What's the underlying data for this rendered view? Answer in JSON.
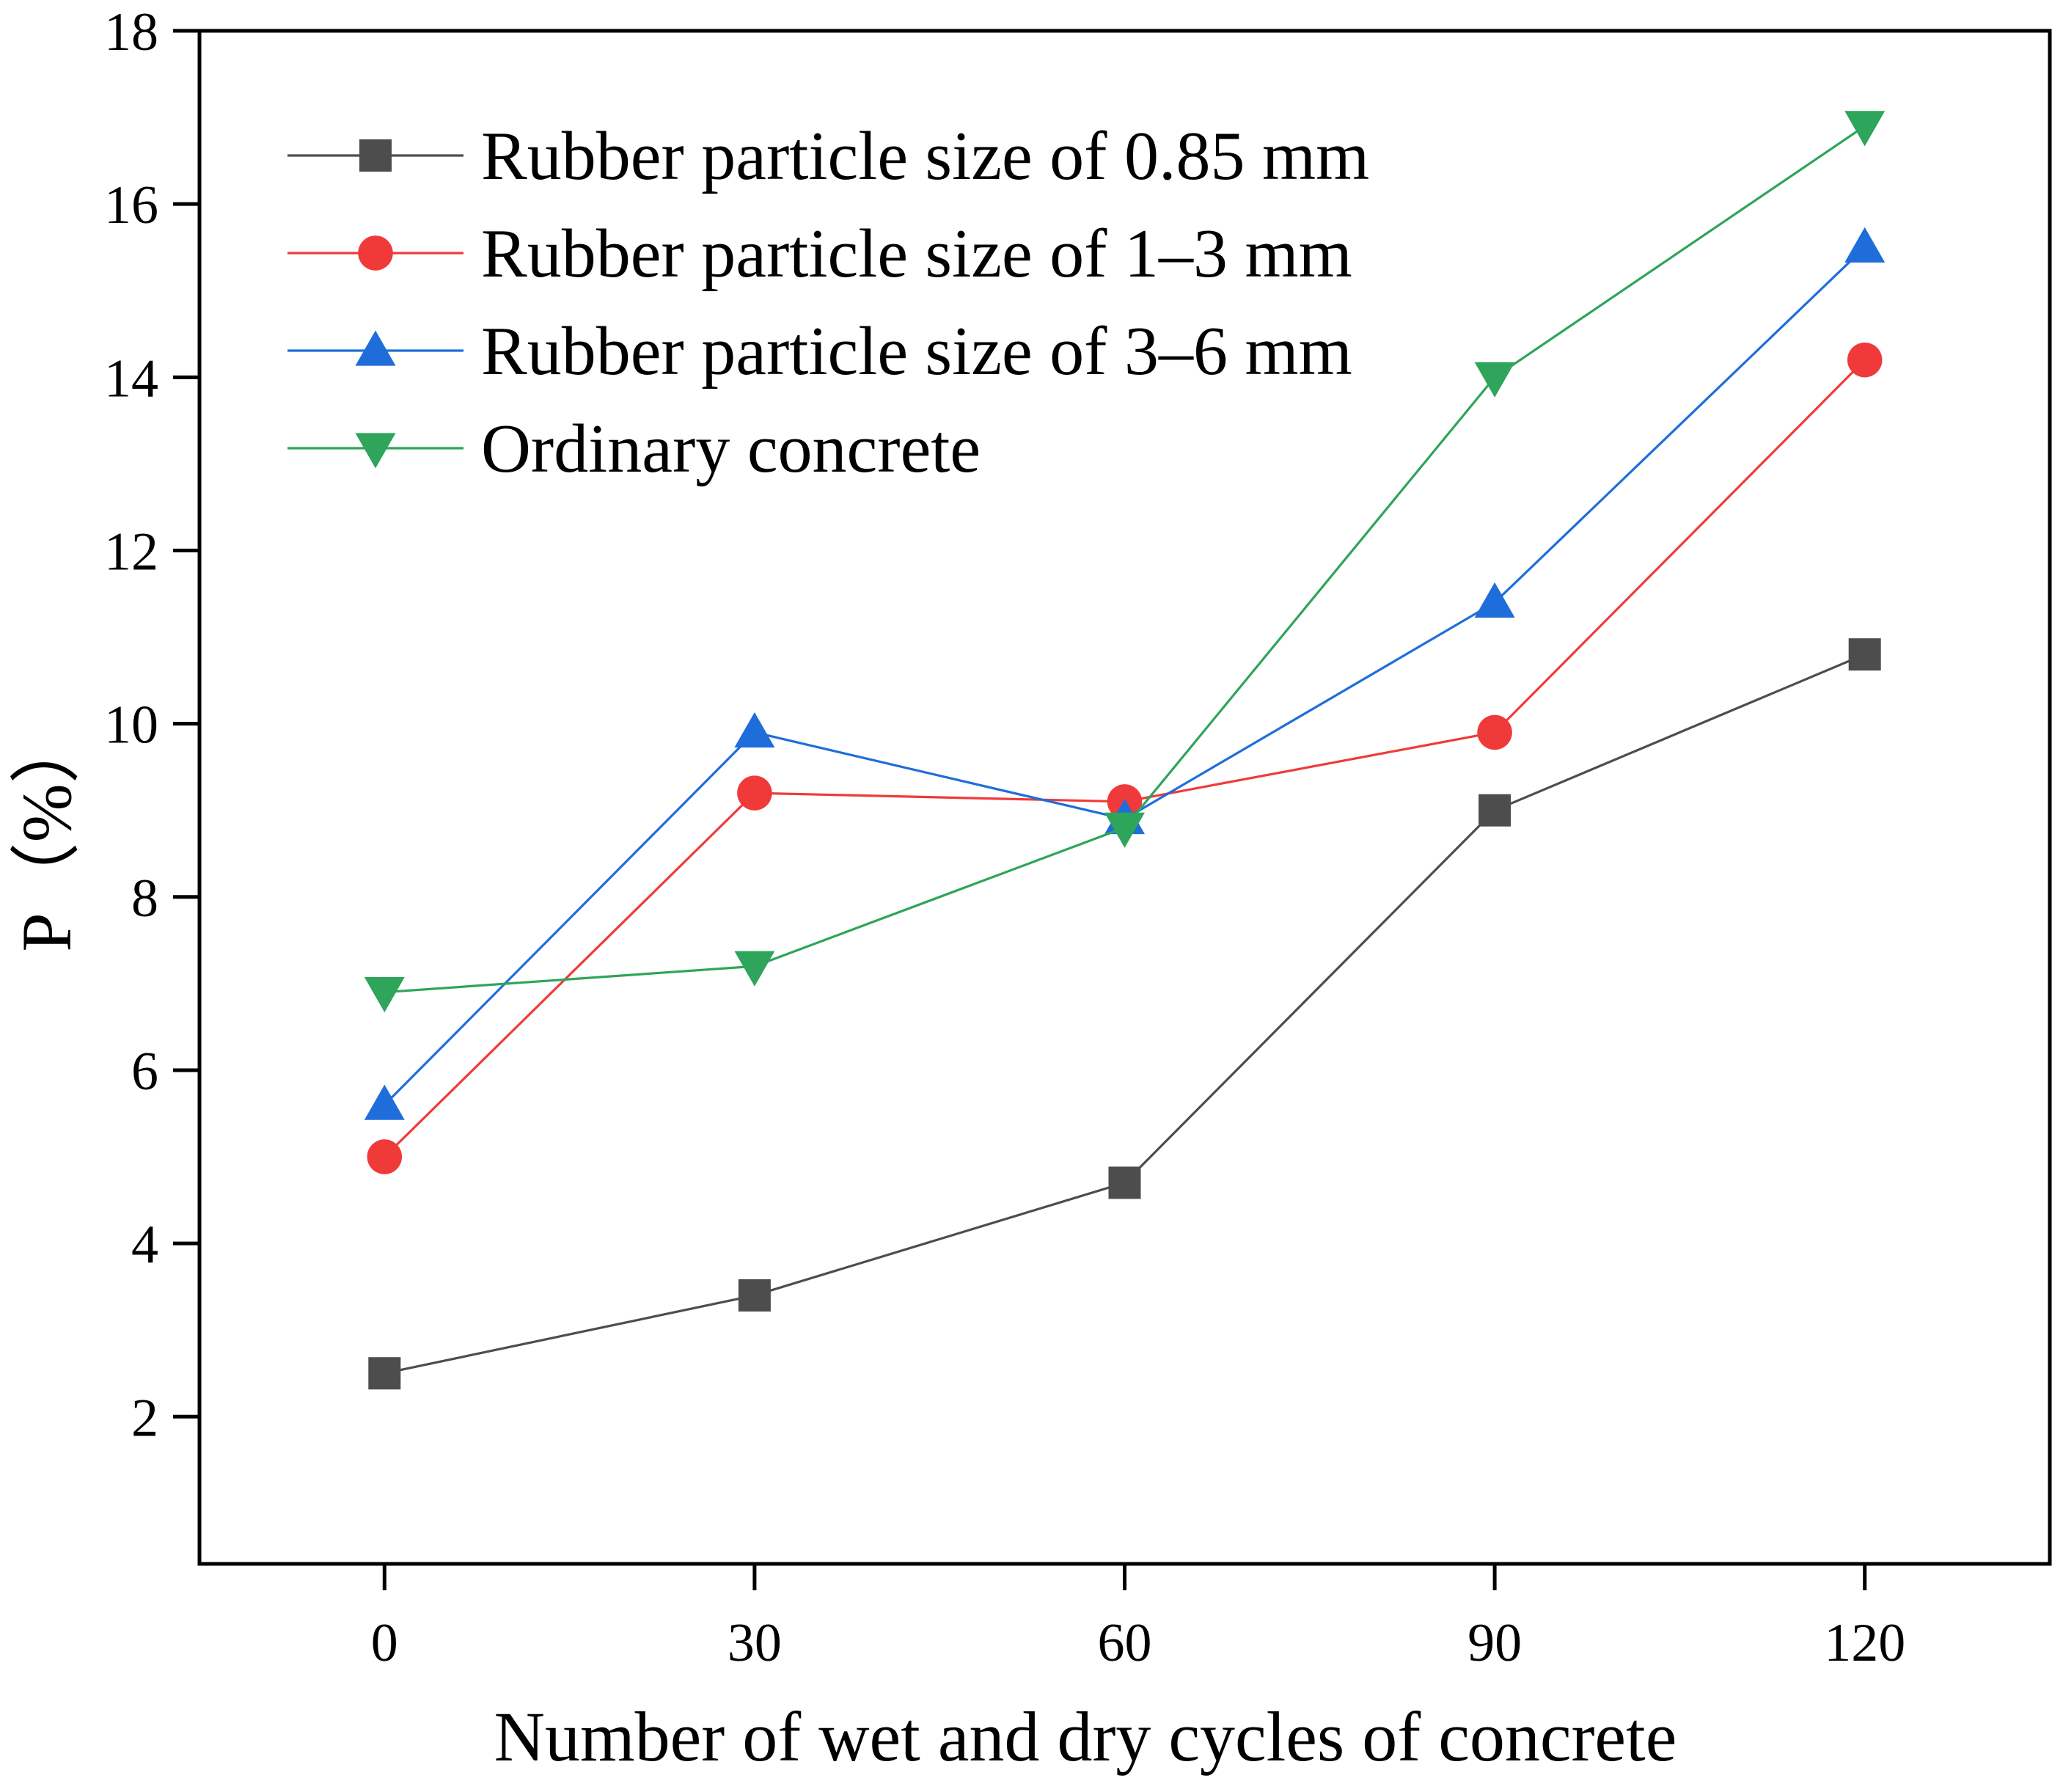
{
  "chart_data": {
    "type": "line",
    "title": "",
    "xlabel": "Number of wet and dry cycles of concrete",
    "ylabel": "P（%）",
    "x": [
      0,
      30,
      60,
      90,
      120
    ],
    "xticks": [
      "0",
      "30",
      "60",
      "90",
      "120"
    ],
    "yticks": [
      "2",
      "4",
      "6",
      "8",
      "10",
      "12",
      "14",
      "16",
      "18"
    ],
    "xlim": [
      -15,
      135
    ],
    "ylim": [
      0.3,
      18
    ],
    "grid": false,
    "legend_position": "top-left",
    "series": [
      {
        "name": "Rubber particle size of 0.85 mm",
        "marker": "square",
        "color": "#4d4d4d",
        "values": [
          2.5,
          3.4,
          4.7,
          9.0,
          10.8
        ]
      },
      {
        "name": "Rubber particle size of 1–3  mm",
        "marker": "circle",
        "color": "#f03a3a",
        "values": [
          5.0,
          9.2,
          9.1,
          9.9,
          14.2
        ]
      },
      {
        "name": "Rubber particle size of 3–6  mm",
        "marker": "triangle-up",
        "color": "#1f6ddb",
        "values": [
          5.6,
          9.9,
          8.9,
          11.4,
          15.5
        ]
      },
      {
        "name": "Ordinary concrete",
        "marker": "triangle-down",
        "color": "#2ea55a",
        "values": [
          6.9,
          7.2,
          8.8,
          14.0,
          16.9
        ]
      }
    ]
  }
}
